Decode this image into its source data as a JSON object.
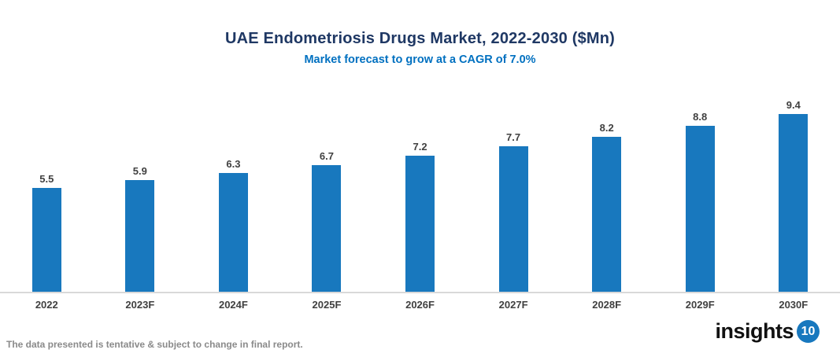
{
  "header": {
    "title": "UAE Endometriosis Drugs Market, 2022-2030 ($Mn)",
    "subtitle": "Market forecast to grow at a CAGR of 7.0%"
  },
  "chart_data": {
    "type": "bar",
    "title": "UAE Endometriosis Drugs Market, 2022-2030 ($Mn)",
    "subtitle": "Market forecast to grow at a CAGR of 7.0%",
    "categories": [
      "2022",
      "2023F",
      "2024F",
      "2025F",
      "2026F",
      "2027F",
      "2028F",
      "2029F",
      "2030F"
    ],
    "values": [
      5.5,
      5.9,
      6.3,
      6.7,
      7.2,
      7.7,
      8.2,
      8.8,
      9.4
    ],
    "xlabel": "",
    "ylabel": "",
    "ylim": [
      0,
      10
    ],
    "grid": false,
    "legend": false,
    "data_labels": true,
    "bar_color": "#1878BE",
    "label_color": "#404040",
    "axis_line_color": "#D9D9D9",
    "title_color": "#1F3864",
    "subtitle_color": "#0070C0"
  },
  "footer": {
    "disclaimer": "The data presented is tentative & subject to change in final report.",
    "logo_text": "insights",
    "logo_badge": "10"
  }
}
